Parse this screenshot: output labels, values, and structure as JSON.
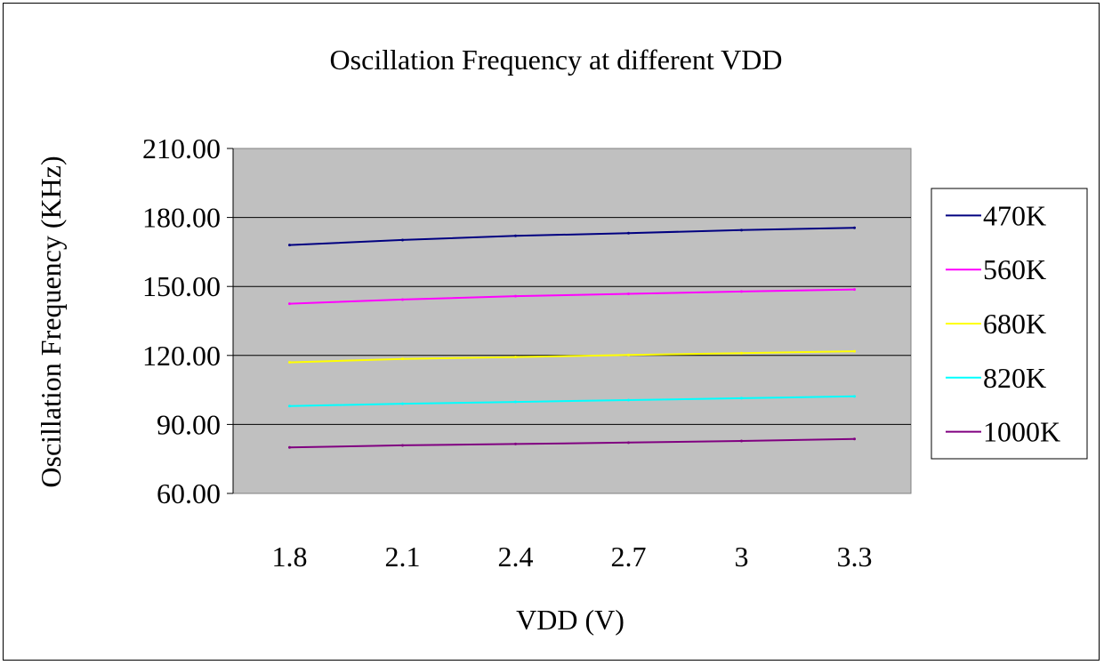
{
  "chart_data": {
    "type": "line",
    "title": "Oscillation Frequency at different VDD",
    "xlabel": "VDD (V)",
    "ylabel": "Oscillation Frequency (KHz)",
    "categories": [
      "1.8",
      "2.1",
      "2.4",
      "2.7",
      "3",
      "3.3"
    ],
    "ylim": [
      60,
      210
    ],
    "yticks": [
      "60.00",
      "90.00",
      "120.00",
      "150.00",
      "180.00",
      "210.00"
    ],
    "grid": true,
    "legend_position": "right",
    "plot_background": "#c0c0c0",
    "series": [
      {
        "name": "470K",
        "color": "#000080",
        "values": [
          168.0,
          170.2,
          172.0,
          173.2,
          174.5,
          175.5
        ]
      },
      {
        "name": "560K",
        "color": "#ff00ff",
        "values": [
          142.5,
          144.3,
          145.8,
          146.8,
          147.8,
          148.7
        ]
      },
      {
        "name": "680K",
        "color": "#ffff00",
        "values": [
          117.0,
          118.5,
          119.3,
          120.2,
          121.0,
          121.8
        ]
      },
      {
        "name": "820K",
        "color": "#00ffff",
        "values": [
          98.0,
          99.0,
          99.8,
          100.6,
          101.4,
          102.2
        ]
      },
      {
        "name": "1000K",
        "color": "#800080",
        "values": [
          80.0,
          80.9,
          81.5,
          82.1,
          82.8,
          83.7
        ]
      }
    ]
  }
}
